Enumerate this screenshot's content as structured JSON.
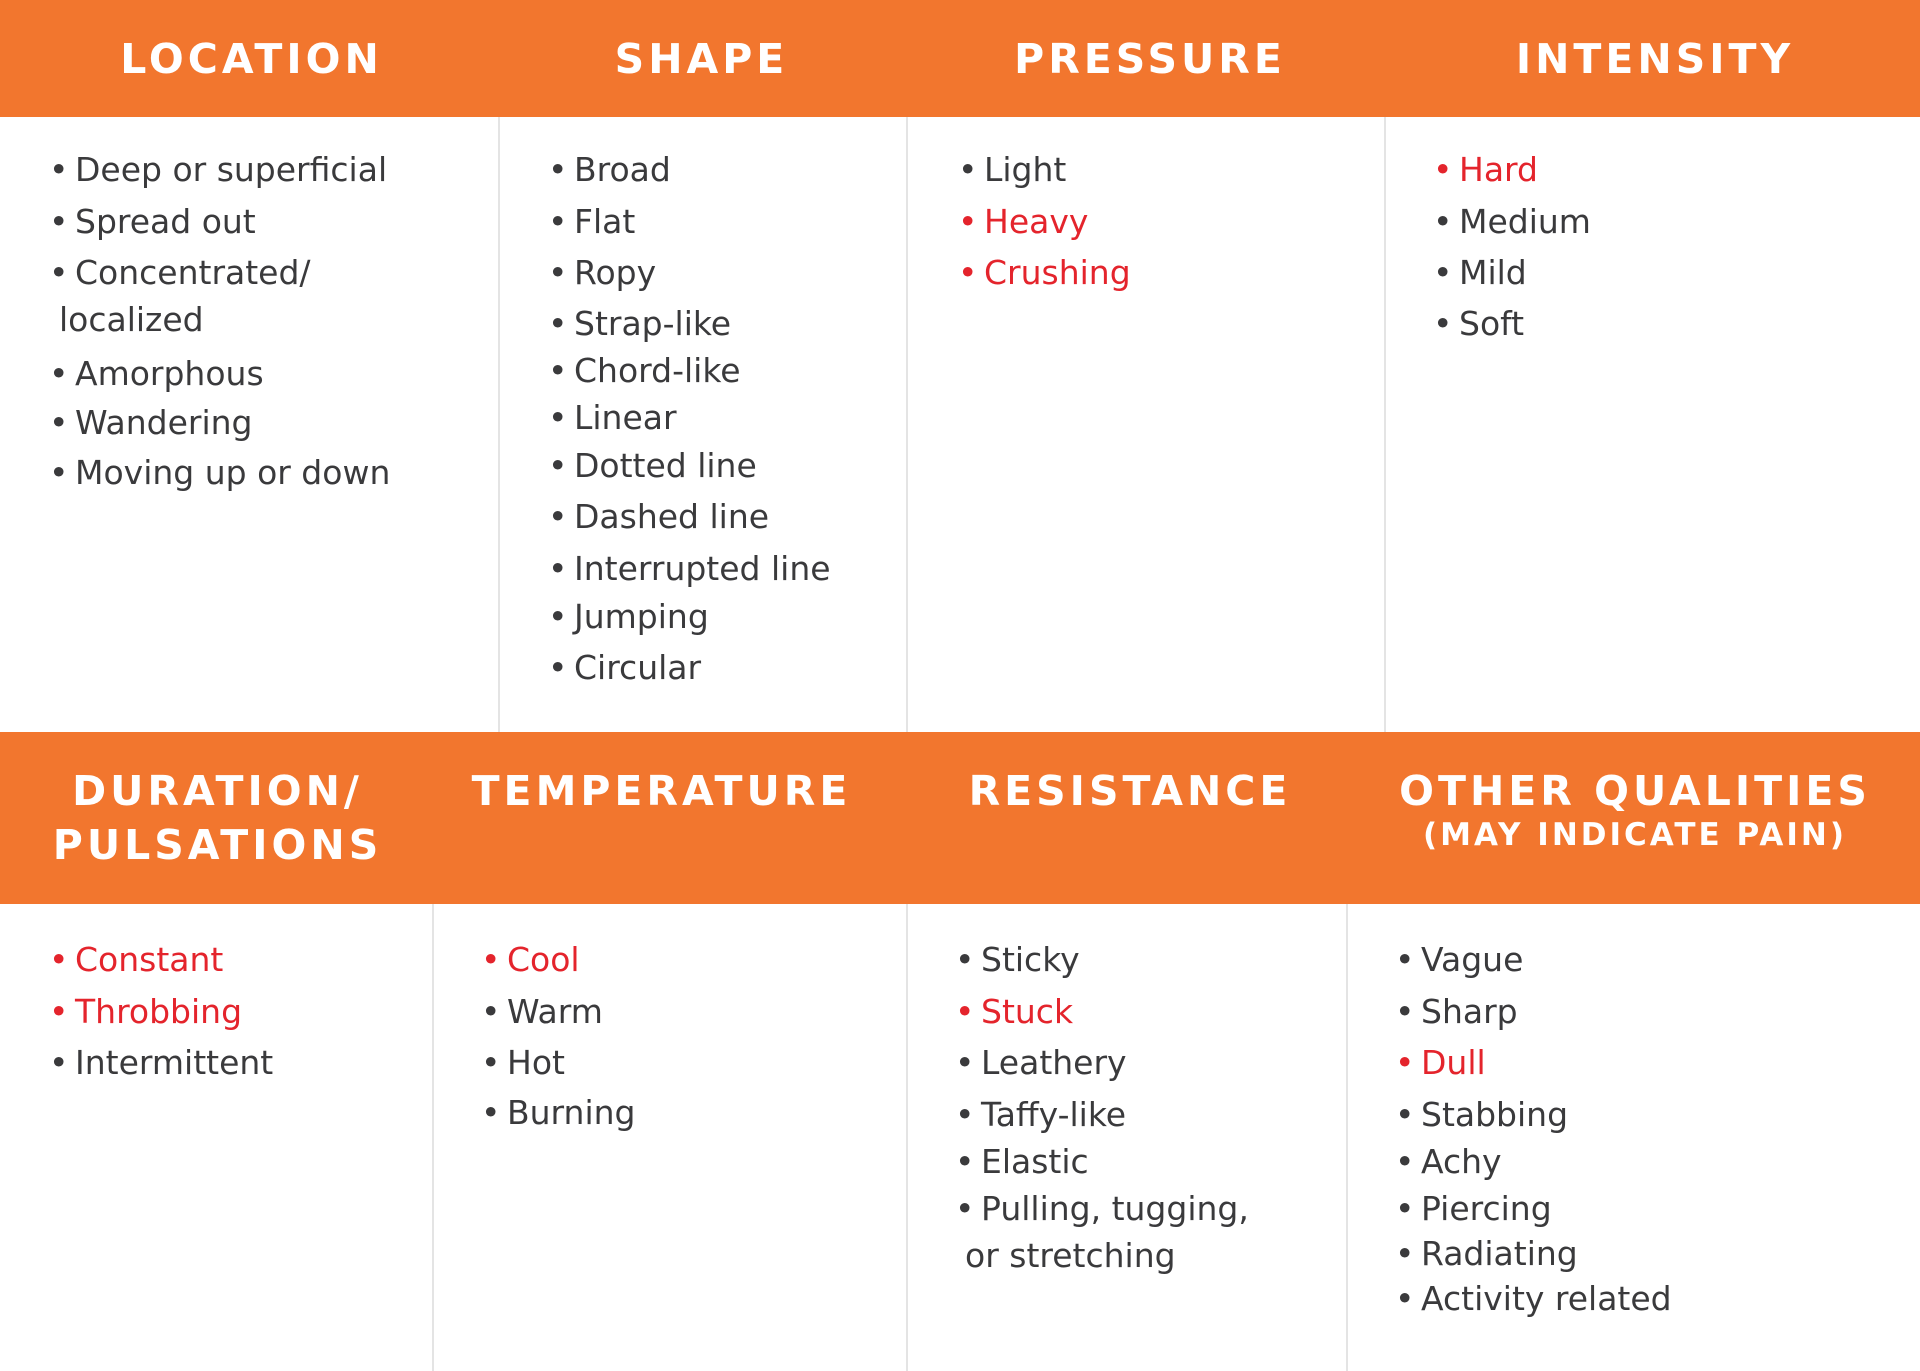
{
  "colors": {
    "header_background": "#f2762e",
    "header_text": "#ffffff",
    "body_text": "#3a3a3c",
    "highlight_text": "#e4242c",
    "divider": "#e4e4e4"
  },
  "bullet": "•",
  "top": {
    "headers": {
      "location": "LOCATION",
      "shape": "SHAPE",
      "pressure": "PRESSURE",
      "intensity": "INTENSITY"
    },
    "location": [
      {
        "text": "Deep or superficial",
        "highlight": false
      },
      {
        "text": "Spread out",
        "highlight": false
      },
      {
        "text": "Concentrated/",
        "cont": "localized",
        "highlight": false
      },
      {
        "text": "Amorphous",
        "highlight": false
      },
      {
        "text": "Wandering",
        "highlight": false
      },
      {
        "text": "Moving up or down",
        "highlight": false
      }
    ],
    "shape": [
      {
        "text": "Broad",
        "highlight": false
      },
      {
        "text": "Flat",
        "highlight": false
      },
      {
        "text": "Ropy",
        "highlight": false
      },
      {
        "text": "Strap-like",
        "highlight": false
      },
      {
        "text": "Chord-like",
        "highlight": false
      },
      {
        "text": "Linear",
        "highlight": false
      },
      {
        "text": "Dotted line",
        "highlight": false
      },
      {
        "text": "Dashed line",
        "highlight": false
      },
      {
        "text": "Interrupted line",
        "highlight": false
      },
      {
        "text": "Jumping",
        "highlight": false
      },
      {
        "text": "Circular",
        "highlight": false
      }
    ],
    "pressure": [
      {
        "text": "Light",
        "highlight": false
      },
      {
        "text": "Heavy",
        "highlight": true
      },
      {
        "text": "Crushing",
        "highlight": true
      }
    ],
    "intensity": [
      {
        "text": "Hard",
        "highlight": true
      },
      {
        "text": "Medium",
        "highlight": false
      },
      {
        "text": "Mild",
        "highlight": false
      },
      {
        "text": "Soft",
        "highlight": false
      }
    ]
  },
  "bottom": {
    "headers": {
      "duration_line1": "DURATION/",
      "duration_line2": "PULSATIONS",
      "temperature": "TEMPERATURE",
      "resistance": "RESISTANCE",
      "other": "OTHER QUALITIES",
      "other_sub": "(MAY INDICATE PAIN)"
    },
    "duration": [
      {
        "text": "Constant",
        "highlight": true
      },
      {
        "text": "Throbbing",
        "highlight": true
      },
      {
        "text": "Intermittent",
        "highlight": false
      }
    ],
    "temperature": [
      {
        "text": "Cool",
        "highlight": true
      },
      {
        "text": "Warm",
        "highlight": false
      },
      {
        "text": "Hot",
        "highlight": false
      },
      {
        "text": "Burning",
        "highlight": false
      }
    ],
    "resistance": [
      {
        "text": "Sticky",
        "highlight": false
      },
      {
        "text": "Stuck",
        "highlight": true
      },
      {
        "text": "Leathery",
        "highlight": false
      },
      {
        "text": "Taffy-like",
        "highlight": false
      },
      {
        "text": "Elastic",
        "highlight": false
      },
      {
        "text": "Pulling, tugging,",
        "cont": "or stretching",
        "highlight": false
      }
    ],
    "other": [
      {
        "text": "Vague",
        "highlight": false
      },
      {
        "text": "Sharp",
        "highlight": false
      },
      {
        "text": "Dull",
        "highlight": true
      },
      {
        "text": "Stabbing",
        "highlight": false
      },
      {
        "text": "Achy",
        "highlight": false
      },
      {
        "text": "Piercing",
        "highlight": false
      },
      {
        "text": "Radiating",
        "highlight": false
      },
      {
        "text": "Activity related",
        "highlight": false
      }
    ]
  }
}
